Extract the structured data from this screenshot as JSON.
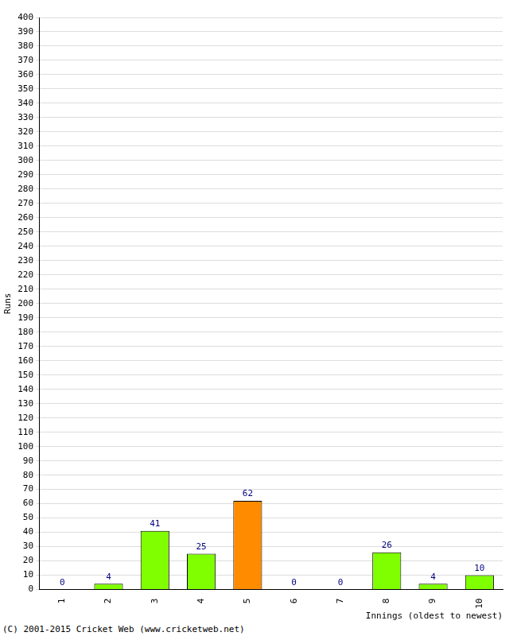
{
  "chart_data": {
    "type": "bar",
    "y_label": "Runs",
    "x_label": "Innings (oldest to newest)",
    "categories": [
      "1",
      "2",
      "3",
      "4",
      "5",
      "6",
      "7",
      "8",
      "9",
      "10"
    ],
    "values": [
      0,
      4,
      41,
      25,
      62,
      0,
      0,
      26,
      4,
      10
    ],
    "colors": [
      "#80ff00",
      "#80ff00",
      "#80ff00",
      "#80ff00",
      "#ff8c00",
      "#80ff00",
      "#80ff00",
      "#80ff00",
      "#80ff00",
      "#80ff00"
    ],
    "ylim": [
      0,
      400
    ],
    "yticks": [
      0,
      10,
      20,
      30,
      40,
      50,
      60,
      70,
      80,
      90,
      100,
      110,
      120,
      130,
      140,
      150,
      160,
      170,
      180,
      190,
      200,
      210,
      220,
      230,
      240,
      250,
      260,
      270,
      280,
      290,
      300,
      310,
      320,
      330,
      340,
      350,
      360,
      370,
      380,
      390,
      400
    ],
    "grid": true,
    "data_labels": true,
    "annotations": [
      "(C) 2001-2015 Cricket Web (www.cricketweb.net)"
    ]
  }
}
